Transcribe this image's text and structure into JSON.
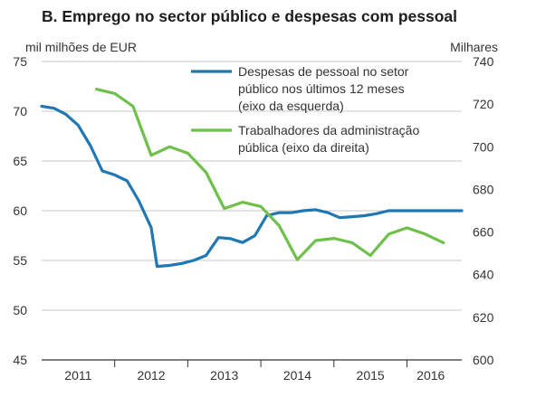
{
  "chart_data": {
    "type": "line",
    "title": "B. Emprego no sector público e despesas com pessoal",
    "ylabel_left": "mil milhões de EUR",
    "ylabel_right": "Milhares",
    "ylim_left": [
      45,
      75
    ],
    "yticks_left": [
      "45",
      "50",
      "55",
      "60",
      "65",
      "70",
      "75"
    ],
    "ylim_right": [
      600,
      740
    ],
    "yticks_right": [
      "600",
      "620",
      "640",
      "660",
      "680",
      "700",
      "720",
      "740"
    ],
    "x_categories": [
      "2011",
      "2012",
      "2013",
      "2014",
      "2015",
      "2016"
    ],
    "x_range": [
      2011.0,
      2016.75
    ],
    "grid": "horizontal",
    "legend_position": "top-right",
    "series": [
      {
        "name": "Despesas de pessoal no setor público nos últimos 12 meses (eixo da esquerda)",
        "legend_lines": [
          "Despesas de pessoal no setor",
          "público nos últimos 12 meses",
          "(eixo da esquerda)"
        ],
        "axis": "left",
        "color": "#1f77b4",
        "x": [
          2011.0,
          2011.17,
          2011.33,
          2011.5,
          2011.67,
          2011.83,
          2012.0,
          2012.17,
          2012.33,
          2012.5,
          2012.58,
          2012.75,
          2012.92,
          2013.08,
          2013.25,
          2013.42,
          2013.58,
          2013.75,
          2013.92,
          2014.08,
          2014.25,
          2014.42,
          2014.58,
          2014.75,
          2014.92,
          2015.08,
          2015.25,
          2015.42,
          2015.58,
          2015.75,
          2015.92,
          2016.08,
          2016.25,
          2016.42,
          2016.58,
          2016.75
        ],
        "values": [
          70.5,
          70.3,
          69.7,
          68.6,
          66.5,
          64.0,
          63.6,
          63.0,
          61.0,
          58.3,
          54.4,
          54.5,
          54.7,
          55.0,
          55.5,
          57.3,
          57.2,
          56.8,
          57.5,
          59.5,
          59.8,
          59.8,
          60.0,
          60.1,
          59.8,
          59.3,
          59.4,
          59.5,
          59.7,
          60.0,
          60.0,
          60.0,
          60.0,
          60.0,
          60.0,
          60.0
        ]
      },
      {
        "name": "Trabalhadores da administração pública (eixo da direita)",
        "legend_lines": [
          "Trabalhadores da administração",
          "pública (eixo da direita)"
        ],
        "axis": "right",
        "color": "#6ec04a",
        "x": [
          2011.75,
          2012.0,
          2012.25,
          2012.5,
          2012.75,
          2013.0,
          2013.25,
          2013.5,
          2013.75,
          2014.0,
          2014.25,
          2014.5,
          2014.75,
          2015.0,
          2015.25,
          2015.5,
          2015.75,
          2016.0,
          2016.25,
          2016.5
        ],
        "values": [
          727,
          725,
          719,
          696,
          700,
          697,
          688,
          671,
          674,
          672,
          663,
          647,
          656,
          657,
          655,
          649,
          659,
          662,
          659,
          655
        ]
      }
    ]
  }
}
